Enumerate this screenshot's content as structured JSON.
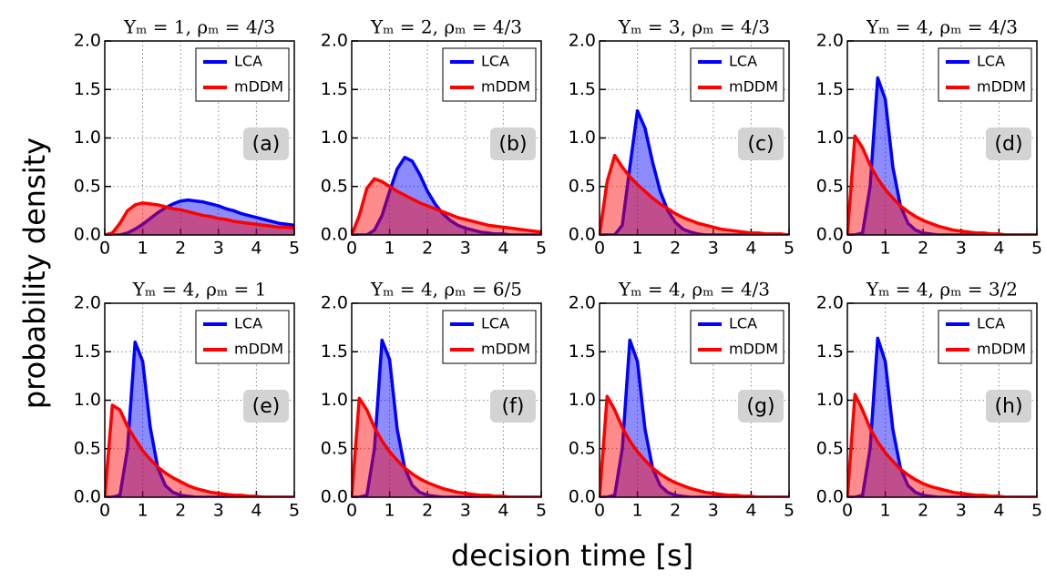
{
  "xlabel": "decision time [s]",
  "ylabel": "probability density",
  "chart_data": [
    {
      "type": "area",
      "title": "Υₘ = 1, ρₘ = 4/3",
      "panel_label": "(a)",
      "x": [
        0,
        0.2,
        0.4,
        0.6,
        0.8,
        1.0,
        1.2,
        1.4,
        1.6,
        1.8,
        2.0,
        2.2,
        2.4,
        2.6,
        2.8,
        3.0,
        3.2,
        3.4,
        3.6,
        3.8,
        4.0,
        4.2,
        4.4,
        4.6,
        4.8,
        5.0
      ],
      "series": [
        {
          "name": "LCA",
          "color": "#0000ff",
          "values": [
            0,
            0,
            0,
            0.02,
            0.06,
            0.11,
            0.17,
            0.23,
            0.28,
            0.32,
            0.35,
            0.36,
            0.35,
            0.34,
            0.32,
            0.3,
            0.27,
            0.25,
            0.22,
            0.2,
            0.18,
            0.16,
            0.14,
            0.12,
            0.11,
            0.1
          ]
        },
        {
          "name": "mDDM",
          "color": "#ff0000",
          "values": [
            0,
            0.02,
            0.12,
            0.25,
            0.31,
            0.33,
            0.32,
            0.31,
            0.29,
            0.27,
            0.26,
            0.24,
            0.22,
            0.2,
            0.19,
            0.17,
            0.16,
            0.14,
            0.13,
            0.12,
            0.11,
            0.1,
            0.09,
            0.08,
            0.08,
            0.07
          ]
        }
      ],
      "xlim": [
        0,
        5
      ],
      "ylim": [
        0,
        2
      ],
      "xticks": [
        0,
        1,
        2,
        3,
        4,
        5
      ],
      "yticks": [
        {
          "value": 0,
          "label": "0.0"
        },
        {
          "value": 0.5,
          "label": "0.5"
        },
        {
          "value": 1,
          "label": "1.0"
        },
        {
          "value": 1.5,
          "label": "1.5"
        },
        {
          "value": 2,
          "label": "2.0"
        }
      ],
      "grid": true,
      "legend": "upper right"
    },
    {
      "type": "area",
      "title": "Υₘ = 2, ρₘ = 4/3",
      "panel_label": "(b)",
      "x": [
        0,
        0.2,
        0.4,
        0.6,
        0.8,
        1.0,
        1.2,
        1.4,
        1.6,
        1.8,
        2.0,
        2.2,
        2.4,
        2.6,
        2.8,
        3.0,
        3.2,
        3.4,
        3.6,
        3.8,
        4.0,
        4.2,
        4.4,
        4.6,
        4.8,
        5.0
      ],
      "series": [
        {
          "name": "LCA",
          "color": "#0000ff",
          "values": [
            0,
            0,
            0,
            0.05,
            0.2,
            0.45,
            0.68,
            0.8,
            0.76,
            0.62,
            0.45,
            0.32,
            0.22,
            0.15,
            0.1,
            0.07,
            0.05,
            0.03,
            0.02,
            0.01,
            0.01,
            0,
            0,
            0,
            0,
            0
          ]
        },
        {
          "name": "mDDM",
          "color": "#ff0000",
          "values": [
            0,
            0.2,
            0.48,
            0.58,
            0.55,
            0.5,
            0.45,
            0.41,
            0.37,
            0.33,
            0.3,
            0.27,
            0.24,
            0.21,
            0.18,
            0.16,
            0.14,
            0.12,
            0.1,
            0.09,
            0.08,
            0.07,
            0.06,
            0.05,
            0.04,
            0.03
          ]
        }
      ],
      "xlim": [
        0,
        5
      ],
      "ylim": [
        0,
        2
      ],
      "xticks": [
        0,
        1,
        2,
        3,
        4,
        5
      ],
      "yticks": [
        {
          "value": 0,
          "label": "0.0"
        },
        {
          "value": 0.5,
          "label": "0.5"
        },
        {
          "value": 1,
          "label": "1.0"
        },
        {
          "value": 1.5,
          "label": "1.5"
        },
        {
          "value": 2,
          "label": "2.0"
        }
      ],
      "grid": true,
      "legend": "upper right"
    },
    {
      "type": "area",
      "title": "Υₘ = 3, ρₘ = 4/3",
      "panel_label": "(c)",
      "x": [
        0,
        0.2,
        0.4,
        0.6,
        0.8,
        1.0,
        1.2,
        1.4,
        1.6,
        1.8,
        2.0,
        2.2,
        2.4,
        2.6,
        2.8,
        3.0,
        3.2,
        3.4,
        3.6,
        3.8,
        4.0,
        4.2,
        4.4,
        4.6,
        4.8,
        5.0
      ],
      "series": [
        {
          "name": "LCA",
          "color": "#0000ff",
          "values": [
            0,
            0,
            0,
            0.1,
            0.7,
            1.28,
            1.1,
            0.75,
            0.45,
            0.25,
            0.13,
            0.06,
            0.03,
            0.01,
            0,
            0,
            0,
            0,
            0,
            0,
            0,
            0,
            0,
            0,
            0,
            0
          ]
        },
        {
          "name": "mDDM",
          "color": "#ff0000",
          "values": [
            0,
            0.55,
            0.82,
            0.7,
            0.6,
            0.52,
            0.45,
            0.38,
            0.32,
            0.27,
            0.22,
            0.18,
            0.15,
            0.12,
            0.1,
            0.08,
            0.06,
            0.05,
            0.04,
            0.03,
            0.02,
            0.02,
            0.01,
            0.01,
            0.01,
            0
          ]
        }
      ],
      "xlim": [
        0,
        5
      ],
      "ylim": [
        0,
        2
      ],
      "xticks": [
        0,
        1,
        2,
        3,
        4,
        5
      ],
      "yticks": [
        {
          "value": 0,
          "label": "0.0"
        },
        {
          "value": 0.5,
          "label": "0.5"
        },
        {
          "value": 1,
          "label": "1.0"
        },
        {
          "value": 1.5,
          "label": "1.5"
        },
        {
          "value": 2,
          "label": "2.0"
        }
      ],
      "grid": true,
      "legend": "upper right"
    },
    {
      "type": "area",
      "title": "Υₘ = 4, ρₘ = 4/3",
      "panel_label": "(d)",
      "x": [
        0,
        0.2,
        0.4,
        0.6,
        0.8,
        1.0,
        1.2,
        1.4,
        1.6,
        1.8,
        2.0,
        2.2,
        2.4,
        2.6,
        2.8,
        3.0,
        3.2,
        3.4,
        3.6,
        3.8,
        4.0,
        4.2,
        4.4,
        4.6,
        4.8,
        5.0
      ],
      "series": [
        {
          "name": "LCA",
          "color": "#0000ff",
          "values": [
            0,
            0,
            0.02,
            0.5,
            1.62,
            1.4,
            0.7,
            0.3,
            0.12,
            0.05,
            0.02,
            0.01,
            0,
            0,
            0,
            0,
            0,
            0,
            0,
            0,
            0,
            0,
            0,
            0,
            0,
            0
          ]
        },
        {
          "name": "mDDM",
          "color": "#ff0000",
          "values": [
            0,
            1.02,
            0.9,
            0.72,
            0.58,
            0.47,
            0.38,
            0.3,
            0.24,
            0.19,
            0.15,
            0.12,
            0.09,
            0.07,
            0.05,
            0.04,
            0.03,
            0.02,
            0.02,
            0.01,
            0.01,
            0,
            0,
            0,
            0,
            0
          ]
        }
      ],
      "xlim": [
        0,
        5
      ],
      "ylim": [
        0,
        2
      ],
      "xticks": [
        0,
        1,
        2,
        3,
        4,
        5
      ],
      "yticks": [
        {
          "value": 0,
          "label": "0.0"
        },
        {
          "value": 0.5,
          "label": "0.5"
        },
        {
          "value": 1,
          "label": "1.0"
        },
        {
          "value": 1.5,
          "label": "1.5"
        },
        {
          "value": 2,
          "label": "2.0"
        }
      ],
      "grid": true,
      "legend": "upper right"
    },
    {
      "type": "area",
      "title": "Υₘ = 4, ρₘ = 1",
      "panel_label": "(e)",
      "x": [
        0,
        0.2,
        0.4,
        0.6,
        0.8,
        1.0,
        1.2,
        1.4,
        1.6,
        1.8,
        2.0,
        2.2,
        2.4,
        2.6,
        2.8,
        3.0,
        3.2,
        3.4,
        3.6,
        3.8,
        4.0,
        4.2,
        4.4,
        4.6,
        4.8,
        5.0
      ],
      "series": [
        {
          "name": "LCA",
          "color": "#0000ff",
          "values": [
            0,
            0,
            0.02,
            0.5,
            1.6,
            1.4,
            0.72,
            0.3,
            0.12,
            0.05,
            0.02,
            0.01,
            0,
            0,
            0,
            0,
            0,
            0,
            0,
            0,
            0,
            0,
            0,
            0,
            0,
            0
          ]
        },
        {
          "name": "mDDM",
          "color": "#ff0000",
          "values": [
            0,
            0.95,
            0.9,
            0.73,
            0.6,
            0.48,
            0.39,
            0.31,
            0.25,
            0.2,
            0.16,
            0.12,
            0.09,
            0.07,
            0.05,
            0.04,
            0.03,
            0.02,
            0.02,
            0.01,
            0.01,
            0,
            0,
            0,
            0,
            0
          ]
        }
      ],
      "xlim": [
        0,
        5
      ],
      "ylim": [
        0,
        2
      ],
      "xticks": [
        0,
        1,
        2,
        3,
        4,
        5
      ],
      "yticks": [
        {
          "value": 0,
          "label": "0.0"
        },
        {
          "value": 0.5,
          "label": "0.5"
        },
        {
          "value": 1,
          "label": "1.0"
        },
        {
          "value": 1.5,
          "label": "1.5"
        },
        {
          "value": 2,
          "label": "2.0"
        }
      ],
      "grid": true,
      "legend": "upper right"
    },
    {
      "type": "area",
      "title": "Υₘ = 4, ρₘ = 6/5",
      "panel_label": "(f)",
      "x": [
        0,
        0.2,
        0.4,
        0.6,
        0.8,
        1.0,
        1.2,
        1.4,
        1.6,
        1.8,
        2.0,
        2.2,
        2.4,
        2.6,
        2.8,
        3.0,
        3.2,
        3.4,
        3.6,
        3.8,
        4.0,
        4.2,
        4.4,
        4.6,
        4.8,
        5.0
      ],
      "series": [
        {
          "name": "LCA",
          "color": "#0000ff",
          "values": [
            0,
            0,
            0.02,
            0.5,
            1.62,
            1.42,
            0.7,
            0.3,
            0.12,
            0.05,
            0.02,
            0.01,
            0,
            0,
            0,
            0,
            0,
            0,
            0,
            0,
            0,
            0,
            0,
            0,
            0,
            0
          ]
        },
        {
          "name": "mDDM",
          "color": "#ff0000",
          "values": [
            0,
            1.02,
            0.9,
            0.72,
            0.58,
            0.47,
            0.38,
            0.3,
            0.24,
            0.19,
            0.15,
            0.12,
            0.09,
            0.07,
            0.05,
            0.04,
            0.03,
            0.02,
            0.02,
            0.01,
            0.01,
            0,
            0,
            0,
            0,
            0
          ]
        }
      ],
      "xlim": [
        0,
        5
      ],
      "ylim": [
        0,
        2
      ],
      "xticks": [
        0,
        1,
        2,
        3,
        4,
        5
      ],
      "yticks": [
        {
          "value": 0,
          "label": "0.0"
        },
        {
          "value": 0.5,
          "label": "0.5"
        },
        {
          "value": 1,
          "label": "1.0"
        },
        {
          "value": 1.5,
          "label": "1.5"
        },
        {
          "value": 2,
          "label": "2.0"
        }
      ],
      "grid": true,
      "legend": "upper right"
    },
    {
      "type": "area",
      "title": "Υₘ = 4, ρₘ = 4/3",
      "panel_label": "(g)",
      "x": [
        0,
        0.2,
        0.4,
        0.6,
        0.8,
        1.0,
        1.2,
        1.4,
        1.6,
        1.8,
        2.0,
        2.2,
        2.4,
        2.6,
        2.8,
        3.0,
        3.2,
        3.4,
        3.6,
        3.8,
        4.0,
        4.2,
        4.4,
        4.6,
        4.8,
        5.0
      ],
      "series": [
        {
          "name": "LCA",
          "color": "#0000ff",
          "values": [
            0,
            0,
            0.02,
            0.5,
            1.62,
            1.4,
            0.7,
            0.3,
            0.12,
            0.05,
            0.02,
            0.01,
            0,
            0,
            0,
            0,
            0,
            0,
            0,
            0,
            0,
            0,
            0,
            0,
            0,
            0
          ]
        },
        {
          "name": "mDDM",
          "color": "#ff0000",
          "values": [
            0,
            1.04,
            0.9,
            0.72,
            0.58,
            0.47,
            0.38,
            0.3,
            0.24,
            0.19,
            0.15,
            0.12,
            0.09,
            0.07,
            0.05,
            0.04,
            0.03,
            0.02,
            0.02,
            0.01,
            0.01,
            0,
            0,
            0,
            0,
            0
          ]
        }
      ],
      "xlim": [
        0,
        5
      ],
      "ylim": [
        0,
        2
      ],
      "xticks": [
        0,
        1,
        2,
        3,
        4,
        5
      ],
      "yticks": [
        {
          "value": 0,
          "label": "0.0"
        },
        {
          "value": 0.5,
          "label": "0.5"
        },
        {
          "value": 1,
          "label": "1.0"
        },
        {
          "value": 1.5,
          "label": "1.5"
        },
        {
          "value": 2,
          "label": "2.0"
        }
      ],
      "grid": true,
      "legend": "upper right"
    },
    {
      "type": "area",
      "title": "Υₘ = 4, ρₘ = 3/2",
      "panel_label": "(h)",
      "x": [
        0,
        0.2,
        0.4,
        0.6,
        0.8,
        1.0,
        1.2,
        1.4,
        1.6,
        1.8,
        2.0,
        2.2,
        2.4,
        2.6,
        2.8,
        3.0,
        3.2,
        3.4,
        3.6,
        3.8,
        4.0,
        4.2,
        4.4,
        4.6,
        4.8,
        5.0
      ],
      "series": [
        {
          "name": "LCA",
          "color": "#0000ff",
          "values": [
            0,
            0,
            0.02,
            0.5,
            1.64,
            1.4,
            0.7,
            0.3,
            0.12,
            0.05,
            0.02,
            0.01,
            0,
            0,
            0,
            0,
            0,
            0,
            0,
            0,
            0,
            0,
            0,
            0,
            0,
            0
          ]
        },
        {
          "name": "mDDM",
          "color": "#ff0000",
          "values": [
            0,
            1.06,
            0.9,
            0.71,
            0.57,
            0.46,
            0.37,
            0.29,
            0.23,
            0.18,
            0.14,
            0.11,
            0.09,
            0.07,
            0.05,
            0.04,
            0.03,
            0.02,
            0.02,
            0.01,
            0.01,
            0,
            0,
            0,
            0,
            0
          ]
        }
      ],
      "xlim": [
        0,
        5
      ],
      "ylim": [
        0,
        2
      ],
      "xticks": [
        0,
        1,
        2,
        3,
        4,
        5
      ],
      "yticks": [
        {
          "value": 0,
          "label": "0.0"
        },
        {
          "value": 0.5,
          "label": "0.5"
        },
        {
          "value": 1,
          "label": "1.0"
        },
        {
          "value": 1.5,
          "label": "1.5"
        },
        {
          "value": 2,
          "label": "2.0"
        }
      ],
      "grid": true,
      "legend": "upper right"
    }
  ]
}
